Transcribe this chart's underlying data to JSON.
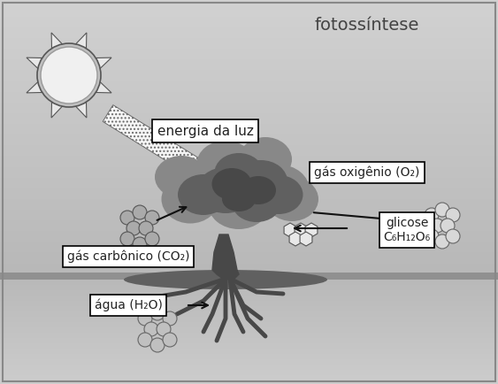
{
  "title": "fotossíntese",
  "label_energia": "energia da luz",
  "label_oxigenio": "gás oxigênio (O₂)",
  "label_carbono": "gás carbônico (CO₂)",
  "label_glicose": "glicose\nC₆H₁₂O₆",
  "label_agua": "água (H₂O)",
  "sky_top": "#c8c8c8",
  "sky_bottom": "#a8a8b0",
  "ground_top": "#b8b8b8",
  "ground_bottom": "#d0d0d0",
  "ground_line_color": "#909090",
  "soil_ellipse_color": "#606060",
  "tree_canopy_light": "#888888",
  "tree_canopy_dark": "#606060",
  "tree_canopy_darker": "#484848",
  "tree_trunk_color": "#484848",
  "root_color": "#484848",
  "sun_ray_fill": "#e8e8e8",
  "sun_ray_edge": "#555555",
  "sun_body_fill": "#f0f0f0",
  "sun_body_edge": "#888888",
  "beam_dot_color": "#555555",
  "molecule_co2_fill": "#aaaaaa",
  "molecule_o2_fill": "#d8d8d8",
  "molecule_water_fill": "#c0c0c0",
  "molecule_glicose_fill": "#e8e8e8",
  "box_face": "#ffffff",
  "box_edge": "#000000",
  "arrow_color": "#111111",
  "text_color": "#222222",
  "title_color": "#444444",
  "border_color": "#888888"
}
